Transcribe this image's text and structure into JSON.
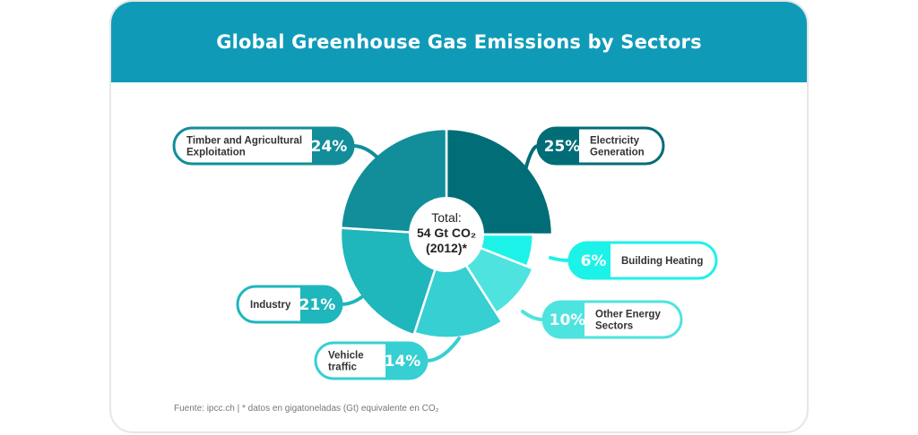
{
  "header": {
    "title": "Global Greenhouse Gas Emissions by Sectors"
  },
  "center": {
    "line1": "Total:",
    "line2": "54 Gt CO₂",
    "line3": "(2012)*"
  },
  "footer": {
    "source": "Fuente: ipcc.ch | * datos en gigatoneladas (Gt) equivalente en CO₂"
  },
  "chart_data": {
    "type": "pie",
    "title": "Global Greenhouse Gas Emissions by Sectors",
    "slices": [
      {
        "label": "Electricity Generation",
        "label_lines": [
          "Electricity",
          "Generation"
        ],
        "value": 25,
        "value_label": "25%",
        "color": "#006d77"
      },
      {
        "label": "Building Heating",
        "label_lines": [
          "Building Heating"
        ],
        "value": 6,
        "value_label": "6%",
        "color": "#1df2e8"
      },
      {
        "label": "Other Energy Sectors",
        "label_lines": [
          "Other Energy",
          "Sectors"
        ],
        "value": 10,
        "value_label": "10%",
        "color": "#4fe3df"
      },
      {
        "label": "Vehicle traffic",
        "label_lines": [
          "Vehicle",
          "traffic"
        ],
        "value": 14,
        "value_label": "14%",
        "color": "#36cfd2"
      },
      {
        "label": "Industry",
        "label_lines": [
          "Industry"
        ],
        "value": 21,
        "value_label": "21%",
        "color": "#1fb6bc"
      },
      {
        "label": "Timber and Agricultural Exploitation",
        "label_lines": [
          "Timber and Agricultural",
          "Exploitation"
        ],
        "value": 24,
        "value_label": "24%",
        "color": "#118e9a"
      }
    ]
  }
}
